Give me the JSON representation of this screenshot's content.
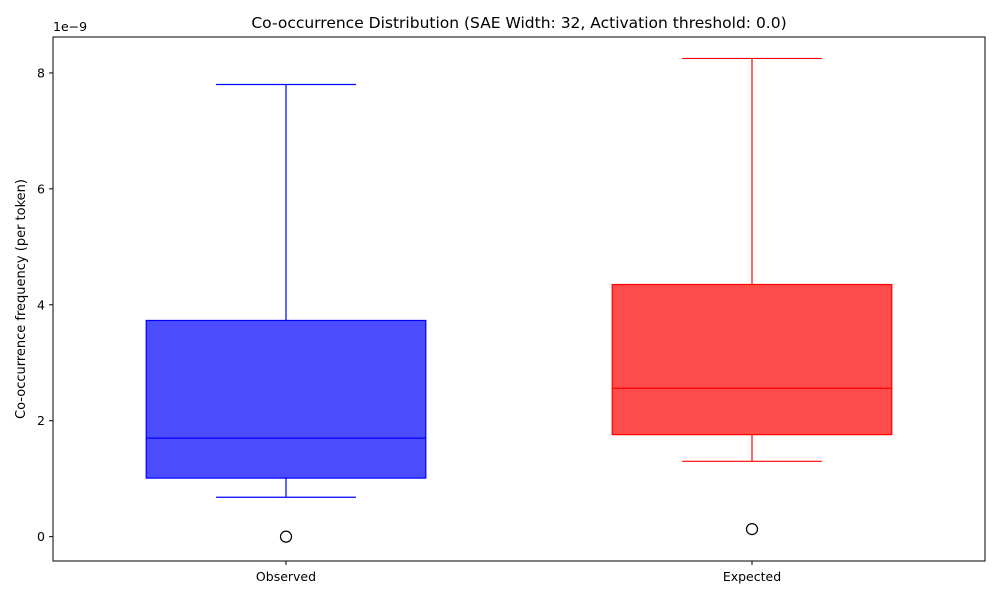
{
  "chart_data": {
    "type": "box",
    "title": "Co-occurrence Distribution (SAE Width: 32, Activation threshold: 0.0)",
    "xlabel": "",
    "ylabel": "Co-occurrence frequency (per token)",
    "y_offset_label": "1e−9",
    "y_scale_factor": 1e-09,
    "ylim": [
      -0.42,
      8.62
    ],
    "y_ticks": [
      0,
      2,
      4,
      6,
      8
    ],
    "grid": false,
    "categories": [
      "Observed",
      "Expected"
    ],
    "boxes": [
      {
        "category": "Observed",
        "whisker_low": 0.68,
        "q1": 1.01,
        "median": 1.7,
        "q3": 3.73,
        "whisker_high": 7.8,
        "outliers": [
          0.0
        ],
        "color": "#0000ff",
        "fill": "#0000ff",
        "fill_opacity": 0.7
      },
      {
        "category": "Expected",
        "whisker_low": 1.3,
        "q1": 1.76,
        "median": 2.56,
        "q3": 4.35,
        "whisker_high": 8.25,
        "outliers": [
          0.13
        ],
        "color": "#ff0000",
        "fill": "#ff0000",
        "fill_opacity": 0.7
      }
    ]
  }
}
